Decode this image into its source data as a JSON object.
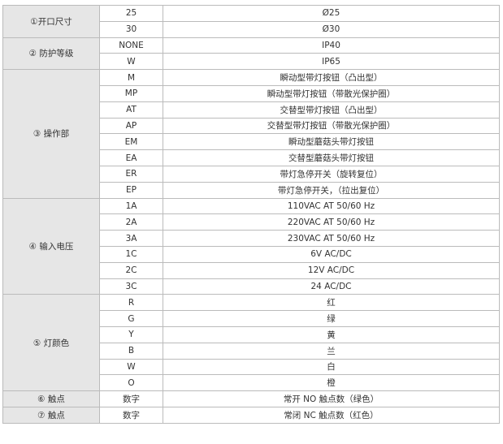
{
  "table": {
    "groups": [
      {
        "label": "①开口尺寸",
        "rows": [
          [
            "25",
            "Ø25"
          ],
          [
            "30",
            "Ø30"
          ]
        ]
      },
      {
        "label": "② 防护等级",
        "rows": [
          [
            "NONE",
            "IP40"
          ],
          [
            "W",
            "IP65"
          ]
        ]
      },
      {
        "label": "③ 操作部",
        "rows": [
          [
            "M",
            "瞬动型带灯按钮（凸出型）"
          ],
          [
            "MP",
            "瞬动型带灯按钮（带散光保护圈）"
          ],
          [
            "AT",
            "交替型带灯按钮（凸出型）"
          ],
          [
            "AP",
            "交替型带灯按钮（带散光保护圈）"
          ],
          [
            "EM",
            "瞬动型蘑菇头带灯按钮"
          ],
          [
            "EA",
            "交替型蘑菇头带灯按钮"
          ],
          [
            "ER",
            "带灯急停开关（旋转复位）"
          ],
          [
            "EP",
            "带灯急停开关，（拉出复位）"
          ]
        ]
      },
      {
        "label": "④ 输入电压",
        "rows": [
          [
            "1A",
            "110VAC AT 50/60 Hz"
          ],
          [
            "2A",
            "220VAC AT 50/60 Hz"
          ],
          [
            "3A",
            "230VAC AT 50/60 Hz"
          ],
          [
            "1C",
            "6V AC/DC"
          ],
          [
            "2C",
            "12V AC/DC"
          ],
          [
            "3C",
            "24 AC/DC"
          ]
        ]
      },
      {
        "label": "⑤ 灯颜色",
        "rows": [
          [
            "R",
            "红"
          ],
          [
            "G",
            "绿"
          ],
          [
            "Y",
            "黄"
          ],
          [
            "B",
            "兰"
          ],
          [
            "W",
            "白"
          ],
          [
            "O",
            "橙"
          ]
        ]
      },
      {
        "label": "⑥ 触点",
        "rows": [
          [
            "数字",
            "常开 NO 触点数（绿色）"
          ]
        ]
      },
      {
        "label": "⑦ 触点",
        "rows": [
          [
            "数字",
            "常闭 NC 触点数（红色）"
          ]
        ]
      }
    ]
  }
}
